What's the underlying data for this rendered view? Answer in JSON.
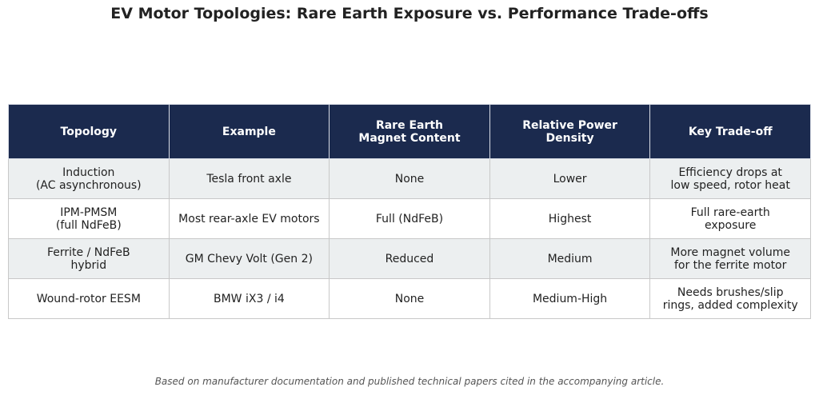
{
  "chart_data": {
    "type": "table",
    "title": "EV Motor Topologies: Rare Earth Exposure vs. Performance Trade-offs",
    "columns": [
      "Topology",
      "Example",
      "Rare Earth\nMagnet Content",
      "Relative Power\nDensity",
      "Key Trade-off"
    ],
    "rows": [
      [
        "Induction\n(AC asynchronous)",
        "Tesla front axle",
        "None",
        "Lower",
        "Efficiency drops at\nlow speed, rotor heat"
      ],
      [
        "IPM-PMSM\n(full NdFeB)",
        "Most rear-axle EV motors",
        "Full (NdFeB)",
        "Highest",
        "Full rare-earth\nexposure"
      ],
      [
        "Ferrite / NdFeB\nhybrid",
        "GM Chevy Volt (Gen 2)",
        "Reduced",
        "Medium",
        "More magnet volume\nfor the ferrite motor"
      ],
      [
        "Wound-rotor EESM",
        "BMW iX3 / i4",
        "None",
        "Medium-High",
        "Needs brushes/slip\nrings, added complexity"
      ]
    ],
    "caption": "Based on manufacturer documentation and published technical papers cited in the accompanying article.",
    "colors": {
      "header_background": "#1b2a4e",
      "header_text": "#ffffff",
      "row_shaded": "#eceff0",
      "row_plain": "#ffffff",
      "border": "#c8c8c8"
    }
  }
}
